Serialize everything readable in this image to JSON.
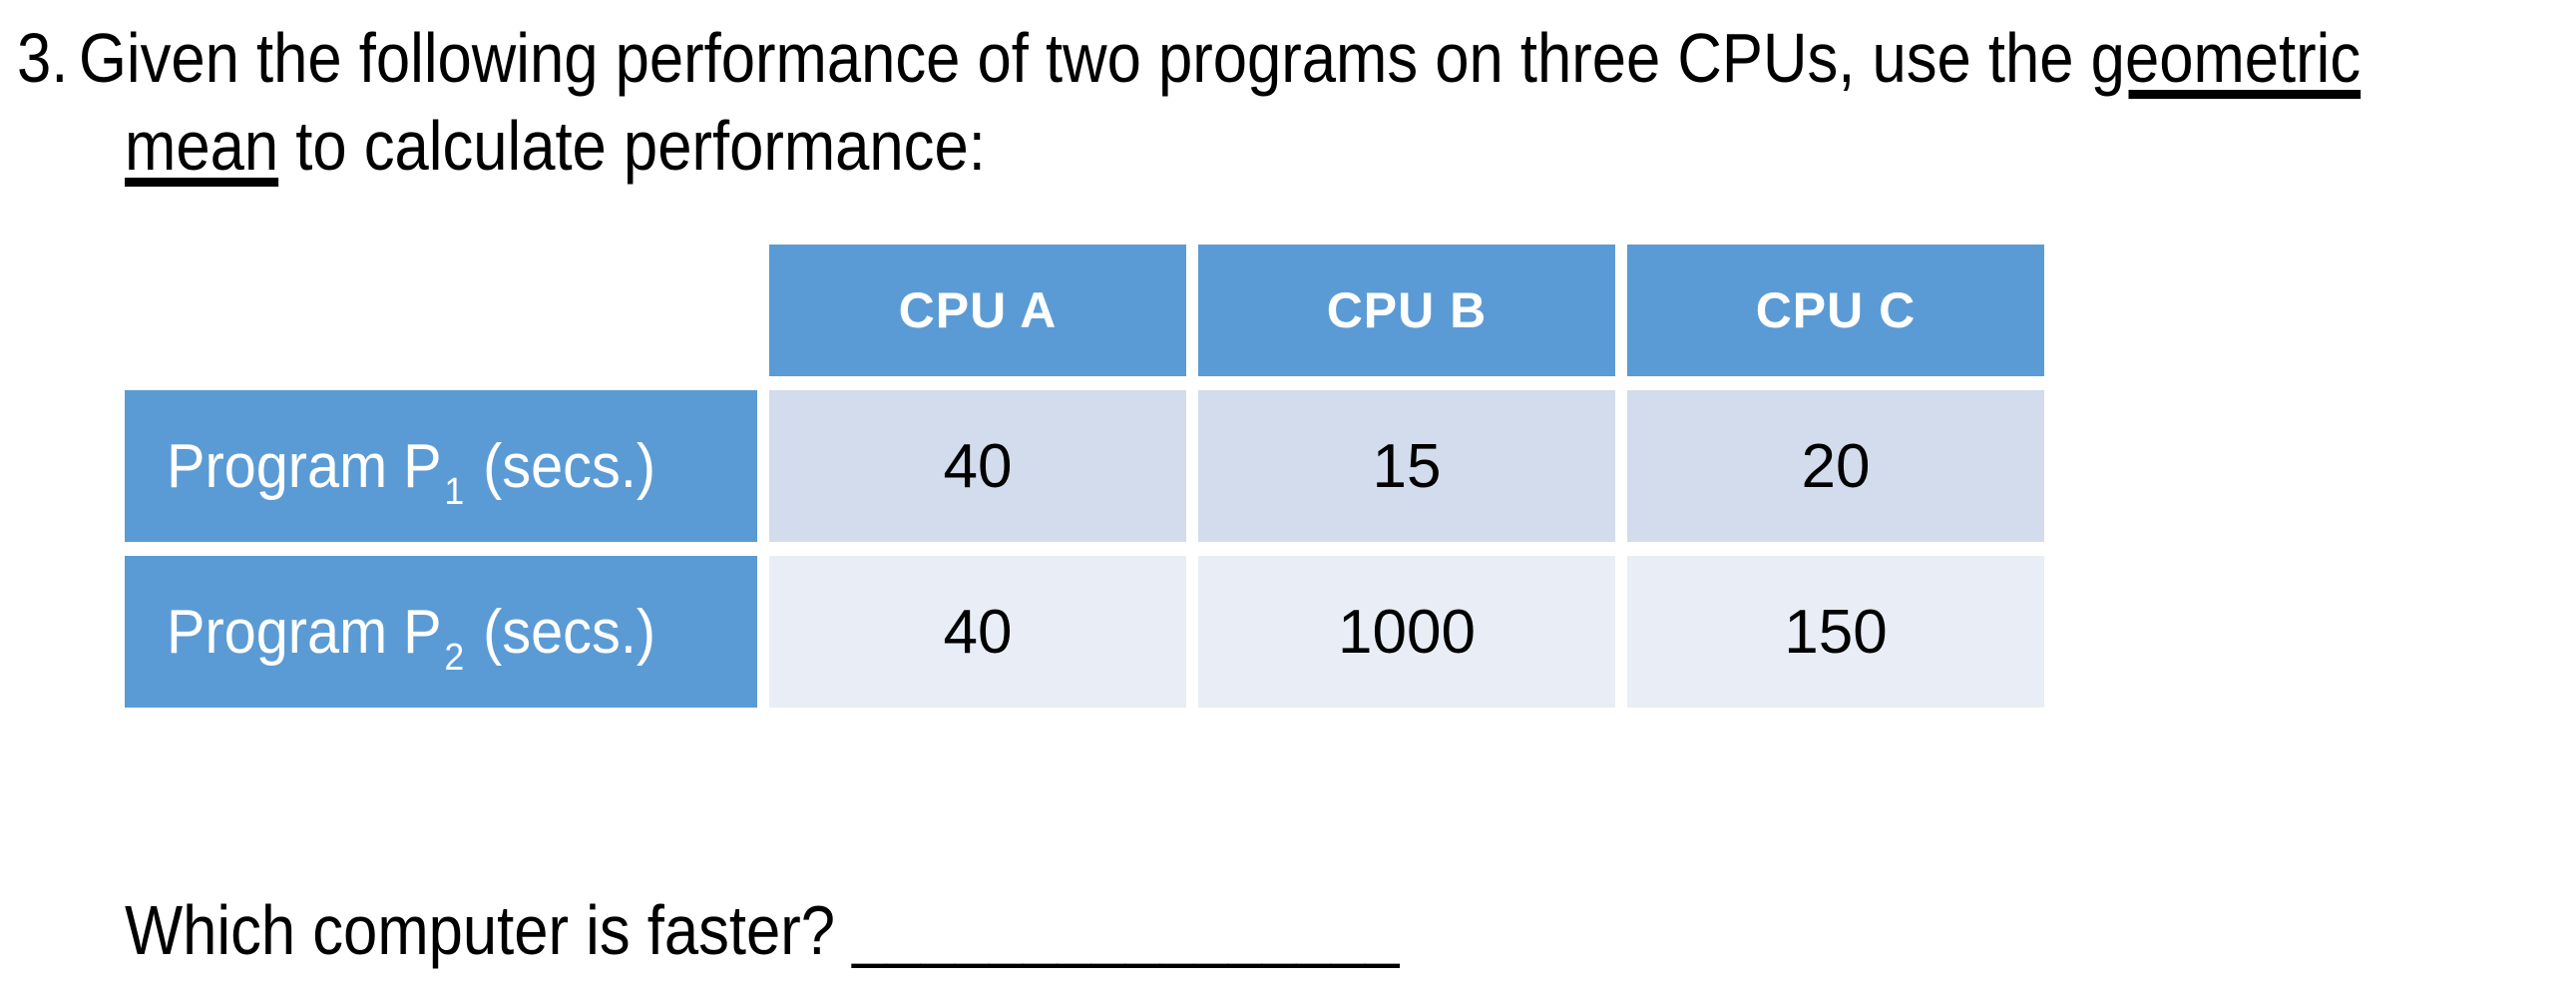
{
  "question": {
    "number": "3.",
    "line1_pre": "Given the following performance of two programs on three CPUs, use the ",
    "line1_underline": "geometric",
    "line2_underline": "mean",
    "line2_post": " to calculate performance:"
  },
  "table": {
    "column_headers": [
      "CPU A",
      "CPU B",
      "CPU C"
    ],
    "rows": [
      {
        "label_pre": "Program P",
        "label_sub": "1",
        "label_post": " (secs.)",
        "values": [
          "40",
          "15",
          "20"
        ]
      },
      {
        "label_pre": "Program P",
        "label_sub": "2",
        "label_post": " (secs.)",
        "values": [
          "40",
          "1000",
          "150"
        ]
      }
    ]
  },
  "footer": {
    "prompt": "Which computer is faster? ",
    "blank": "________________"
  },
  "colors": {
    "header_blue": "#5B9BD5",
    "header_text": "#FFFFFF",
    "row_band_1": "#D2DCEC",
    "row_band_2": "#E9EDF5",
    "text": "#000000"
  }
}
